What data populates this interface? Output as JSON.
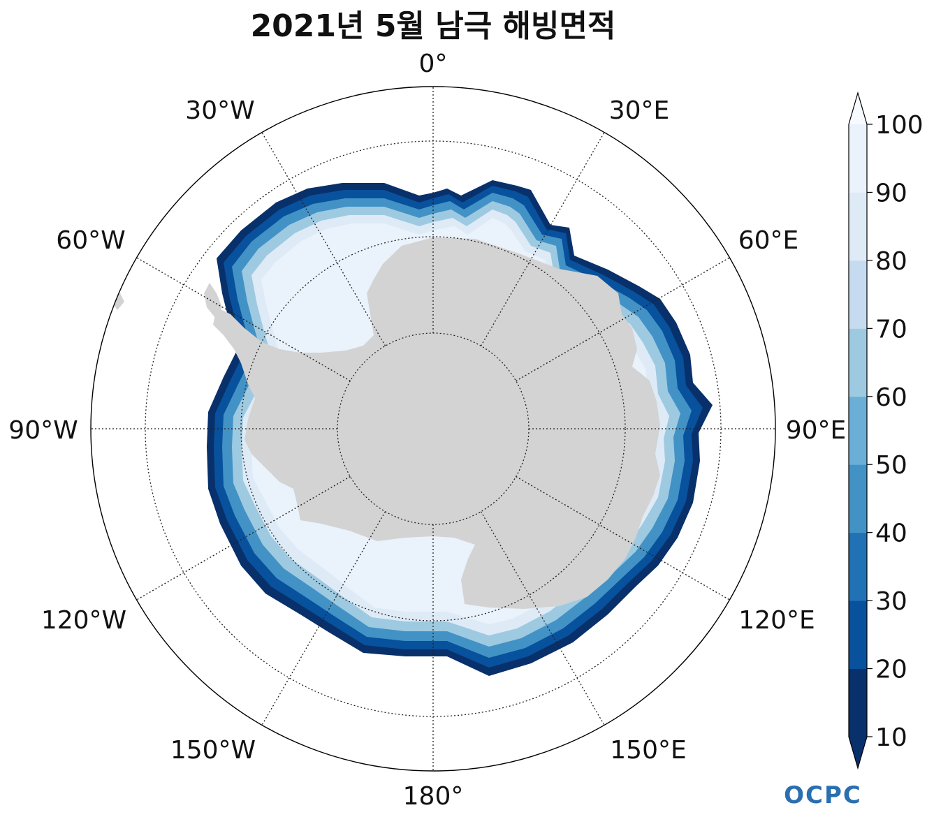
{
  "map": {
    "title": "2021년 5월 남극 해빙면적",
    "projection": "south-polar-stereographic",
    "longitude_labels": {
      "lon0": "0°",
      "lon30e": "30°E",
      "lon60e": "60°E",
      "lon90e": "90°E",
      "lon120e": "120°E",
      "lon150e": "150°E",
      "lon180": "180°",
      "lon150w": "150°W",
      "lon120w": "120°W",
      "lon90w": "90°W",
      "lon60w": "60°W",
      "lon30w": "30°W"
    },
    "land_color": "#d3d3d3"
  },
  "colorbar": {
    "ticks": [
      "10",
      "20",
      "30",
      "40",
      "50",
      "60",
      "70",
      "80",
      "90",
      "100"
    ],
    "colors": [
      "#08306b",
      "#08519c",
      "#2171b5",
      "#4292c6",
      "#6baed6",
      "#9ecae1",
      "#c6dbef",
      "#deebf7",
      "#eaf2fb",
      "#f7fbff"
    ],
    "extend": "both"
  },
  "logo": {
    "text": "OCPC",
    "color": "#2a6fb0"
  }
}
